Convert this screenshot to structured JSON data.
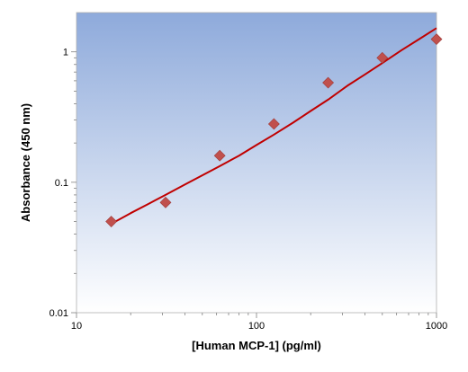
{
  "chart_data": {
    "type": "scatter",
    "title": "",
    "xlabel": "[Human MCP-1] (pg/ml)",
    "ylabel": "Absorbance (450 nm)",
    "x_scale": "log",
    "y_scale": "log",
    "xlim": [
      10,
      1000
    ],
    "ylim": [
      0.01,
      2
    ],
    "x_ticks": [
      10,
      100,
      1000
    ],
    "x_tick_labels": [
      "10",
      "100",
      "1000"
    ],
    "y_ticks": [
      0.01,
      0.1,
      1
    ],
    "y_tick_labels": [
      "0.01",
      "0.1",
      "1"
    ],
    "grid": false,
    "legend": "none",
    "points": {
      "x": [
        15.6,
        31.25,
        62.5,
        125,
        250,
        500,
        1000
      ],
      "y": [
        0.05,
        0.07,
        0.16,
        0.28,
        0.58,
        0.9,
        1.25
      ],
      "color": "#c0504d"
    },
    "fit_curve": {
      "x": [
        15.6,
        20,
        25,
        28,
        31.25,
        40,
        50,
        62.5,
        80,
        100,
        125,
        160,
        200,
        250,
        320,
        400,
        500,
        640,
        800,
        1000
      ],
      "y": [
        0.048,
        0.058,
        0.068,
        0.074,
        0.08,
        0.096,
        0.113,
        0.133,
        0.16,
        0.193,
        0.232,
        0.287,
        0.352,
        0.43,
        0.55,
        0.67,
        0.82,
        1.03,
        1.25,
        1.52
      ],
      "color": "#c00000"
    },
    "colors": {
      "plot_bg_top": "#8eaadb",
      "plot_bg_bottom": "#ffffff",
      "marker": "#c0504d",
      "fit_line": "#c00000"
    }
  }
}
